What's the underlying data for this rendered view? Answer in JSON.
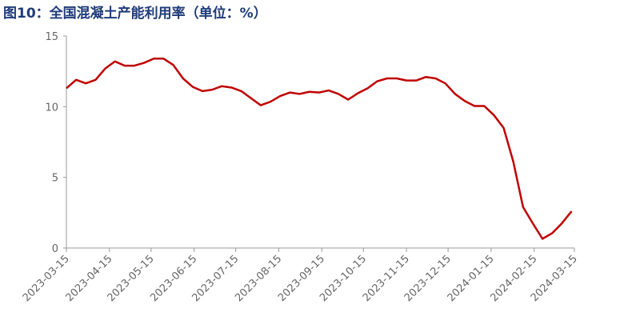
{
  "chart_data": {
    "type": "line",
    "title": "图10：全国混凝土产能利用率（单位：%）",
    "x": [
      "2023-03-15",
      "2023-03-22",
      "2023-03-29",
      "2023-04-05",
      "2023-04-12",
      "2023-04-19",
      "2023-04-26",
      "2023-05-03",
      "2023-05-10",
      "2023-05-17",
      "2023-05-24",
      "2023-05-31",
      "2023-06-07",
      "2023-06-14",
      "2023-06-21",
      "2023-06-28",
      "2023-07-05",
      "2023-07-12",
      "2023-07-19",
      "2023-07-26",
      "2023-08-02",
      "2023-08-09",
      "2023-08-16",
      "2023-08-23",
      "2023-08-30",
      "2023-09-06",
      "2023-09-13",
      "2023-09-20",
      "2023-09-27",
      "2023-10-04",
      "2023-10-11",
      "2023-10-18",
      "2023-10-25",
      "2023-11-01",
      "2023-11-08",
      "2023-11-15",
      "2023-11-22",
      "2023-11-29",
      "2023-12-06",
      "2023-12-13",
      "2023-12-20",
      "2023-12-27",
      "2024-01-03",
      "2024-01-10",
      "2024-01-17",
      "2024-01-24",
      "2024-01-31",
      "2024-02-07",
      "2024-02-14",
      "2024-02-21",
      "2024-02-28",
      "2024-03-06",
      "2024-03-13"
    ],
    "series": [
      {
        "name": "全国混凝土产能利用率",
        "color": "#c00000",
        "values": [
          11.3,
          11.9,
          11.65,
          11.9,
          12.7,
          13.2,
          12.9,
          12.9,
          13.1,
          13.4,
          13.4,
          12.95,
          12.0,
          11.4,
          11.1,
          11.2,
          11.45,
          11.35,
          11.1,
          10.6,
          10.1,
          10.35,
          10.75,
          11.0,
          10.9,
          11.05,
          11.0,
          11.15,
          10.9,
          10.5,
          10.95,
          11.3,
          11.8,
          12.0,
          12.0,
          11.85,
          11.85,
          12.1,
          12.0,
          11.65,
          10.9,
          10.4,
          10.05,
          10.05,
          9.4,
          8.5,
          6.1,
          2.9,
          1.75,
          0.65,
          1.05,
          1.75,
          2.6
        ]
      }
    ],
    "xlim": [
      "2023-03-15",
      "2024-03-15"
    ],
    "xticks": [
      "2023-03-15",
      "2023-04-15",
      "2023-05-15",
      "2023-06-15",
      "2023-07-15",
      "2023-08-15",
      "2023-09-15",
      "2023-10-15",
      "2023-11-15",
      "2023-12-15",
      "2024-01-15",
      "2024-02-15",
      "2024-03-15"
    ],
    "ylim": [
      0,
      15
    ],
    "yticks": [
      0,
      5,
      10,
      15
    ],
    "grid": false
  }
}
